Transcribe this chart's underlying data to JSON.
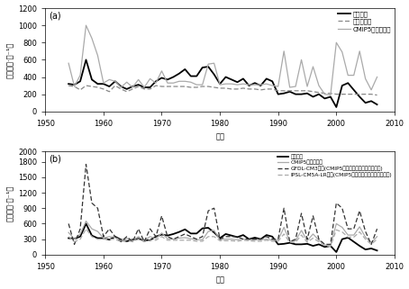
{
  "years": [
    1954,
    1955,
    1956,
    1957,
    1958,
    1959,
    1960,
    1961,
    1962,
    1963,
    1964,
    1965,
    1966,
    1967,
    1968,
    1969,
    1970,
    1971,
    1972,
    1973,
    1974,
    1975,
    1976,
    1977,
    1978,
    1979,
    1980,
    1981,
    1982,
    1983,
    1984,
    1985,
    1986,
    1987,
    1988,
    1989,
    1990,
    1991,
    1992,
    1993,
    1994,
    1995,
    1996,
    1997,
    1998,
    1999,
    2000,
    2001,
    2002,
    2003,
    2004,
    2005,
    2006,
    2007
  ],
  "obs_a": [
    320,
    310,
    350,
    600,
    370,
    320,
    320,
    290,
    350,
    290,
    260,
    290,
    310,
    280,
    280,
    350,
    390,
    370,
    400,
    440,
    490,
    410,
    410,
    510,
    520,
    430,
    320,
    400,
    370,
    340,
    380,
    300,
    330,
    300,
    380,
    350,
    200,
    210,
    230,
    200,
    200,
    210,
    170,
    200,
    150,
    170,
    50,
    300,
    330,
    250,
    170,
    100,
    120,
    80
  ],
  "reanalysis": [
    300,
    290,
    250,
    300,
    290,
    280,
    260,
    230,
    300,
    260,
    230,
    260,
    290,
    260,
    260,
    300,
    290,
    290,
    290,
    290,
    290,
    280,
    280,
    290,
    290,
    280,
    270,
    270,
    260,
    260,
    270,
    260,
    260,
    250,
    260,
    260,
    240,
    240,
    240,
    240,
    240,
    240,
    230,
    220,
    210,
    210,
    200,
    200,
    200,
    200,
    200,
    200,
    200,
    190
  ],
  "cmip5_mean_a": [
    560,
    290,
    420,
    1000,
    850,
    650,
    330,
    370,
    350,
    280,
    340,
    280,
    370,
    280,
    380,
    330,
    470,
    330,
    330,
    350,
    350,
    340,
    310,
    310,
    550,
    560,
    310,
    320,
    320,
    310,
    320,
    310,
    310,
    310,
    320,
    300,
    290,
    700,
    280,
    290,
    600,
    290,
    520,
    300,
    200,
    190,
    800,
    690,
    420,
    420,
    700,
    380,
    250,
    400
  ],
  "obs_b": [
    320,
    310,
    350,
    600,
    370,
    320,
    320,
    290,
    350,
    290,
    260,
    290,
    310,
    280,
    280,
    350,
    390,
    370,
    400,
    440,
    490,
    410,
    410,
    510,
    520,
    430,
    320,
    400,
    370,
    340,
    380,
    300,
    330,
    300,
    380,
    350,
    200,
    210,
    230,
    200,
    200,
    210,
    170,
    200,
    150,
    170,
    50,
    300,
    330,
    250,
    170,
    100,
    120,
    80
  ],
  "cmip5_mean_b": [
    430,
    300,
    400,
    650,
    500,
    450,
    320,
    350,
    340,
    270,
    320,
    270,
    350,
    270,
    350,
    310,
    420,
    310,
    300,
    320,
    330,
    310,
    290,
    290,
    450,
    470,
    290,
    300,
    300,
    290,
    300,
    290,
    290,
    290,
    300,
    280,
    280,
    530,
    260,
    270,
    470,
    270,
    400,
    280,
    190,
    180,
    600,
    530,
    380,
    380,
    540,
    340,
    230,
    350
  ],
  "gfdl_cm3": [
    600,
    200,
    500,
    1750,
    1000,
    900,
    350,
    500,
    350,
    250,
    350,
    250,
    500,
    250,
    500,
    350,
    750,
    350,
    300,
    350,
    400,
    350,
    300,
    350,
    850,
    900,
    300,
    350,
    350,
    350,
    300,
    300,
    300,
    300,
    350,
    300,
    300,
    900,
    250,
    300,
    800,
    300,
    750,
    300,
    200,
    200,
    1000,
    900,
    500,
    500,
    850,
    450,
    200,
    500
  ],
  "ipsl_cm5a": [
    350,
    250,
    300,
    500,
    350,
    300,
    300,
    300,
    300,
    250,
    280,
    250,
    300,
    250,
    280,
    280,
    350,
    280,
    280,
    280,
    280,
    280,
    260,
    260,
    350,
    350,
    270,
    270,
    270,
    260,
    280,
    270,
    260,
    260,
    280,
    260,
    260,
    400,
    240,
    240,
    380,
    240,
    320,
    250,
    180,
    160,
    480,
    440,
    340,
    340,
    440,
    300,
    200,
    300
  ],
  "panel_a_ylim": [
    0,
    1200
  ],
  "panel_a_yticks": [
    0,
    200,
    400,
    600,
    800,
    1000,
    1200
  ],
  "panel_b_ylim": [
    0,
    2000
  ],
  "panel_b_yticks": [
    0,
    300,
    600,
    900,
    1200,
    1500,
    1800,
    2000
  ],
  "xlabel": "年份",
  "ylabel": "频次（次·年⁻¹）",
  "legend_a": [
    "观测数据",
    "再分析资料",
    "CMIP5模式平均値"
  ],
  "legend_b": [
    "观测数据",
    "CMIP5模式平均値",
    "GFDL-CM3模式(CMIP5模式平均値的数据来源之一)",
    "IPSL-CM5A-LR模式(CMIP5模式平均値的数据来源之二)"
  ],
  "label_a": "(a)",
  "label_b": "(b)",
  "xlim": [
    1950,
    2010
  ],
  "xticks": [
    1950,
    1960,
    1970,
    1980,
    1990,
    2000,
    2010
  ],
  "color_obs": "#000000",
  "color_reanalysis": "#888888",
  "color_cmip5": "#aaaaaa",
  "color_gfdl": "#333333",
  "color_ipsl": "#aaaaaa",
  "bg_color": "#ffffff"
}
